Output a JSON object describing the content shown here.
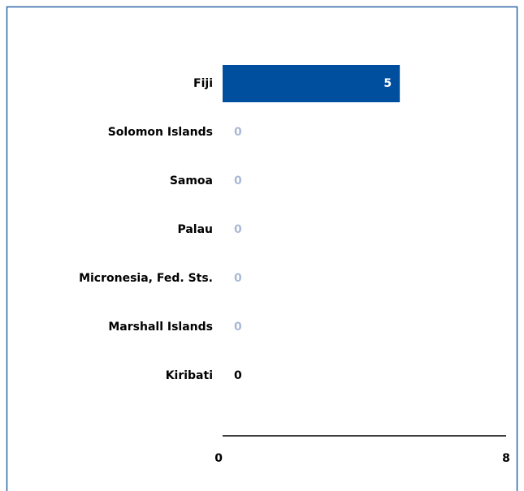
{
  "chart_data": {
    "type": "bar",
    "orientation": "horizontal",
    "categories": [
      "Fiji",
      "Solomon Islands",
      "Samoa",
      "Palau",
      "Micronesia, Fed. Sts.",
      "Marshall Islands",
      "Kiribati"
    ],
    "values": [
      5,
      0,
      0,
      0,
      0,
      0,
      0
    ],
    "color": "#004f9f",
    "value_label_colors": [
      "#ffffff",
      "#a9b8d4",
      "#a9b8d4",
      "#a9b8d4",
      "#a9b8d4",
      "#a9b8d4",
      "#000000"
    ],
    "xlim": [
      0,
      8
    ],
    "xticks": [
      0,
      8
    ],
    "grid": false
  }
}
